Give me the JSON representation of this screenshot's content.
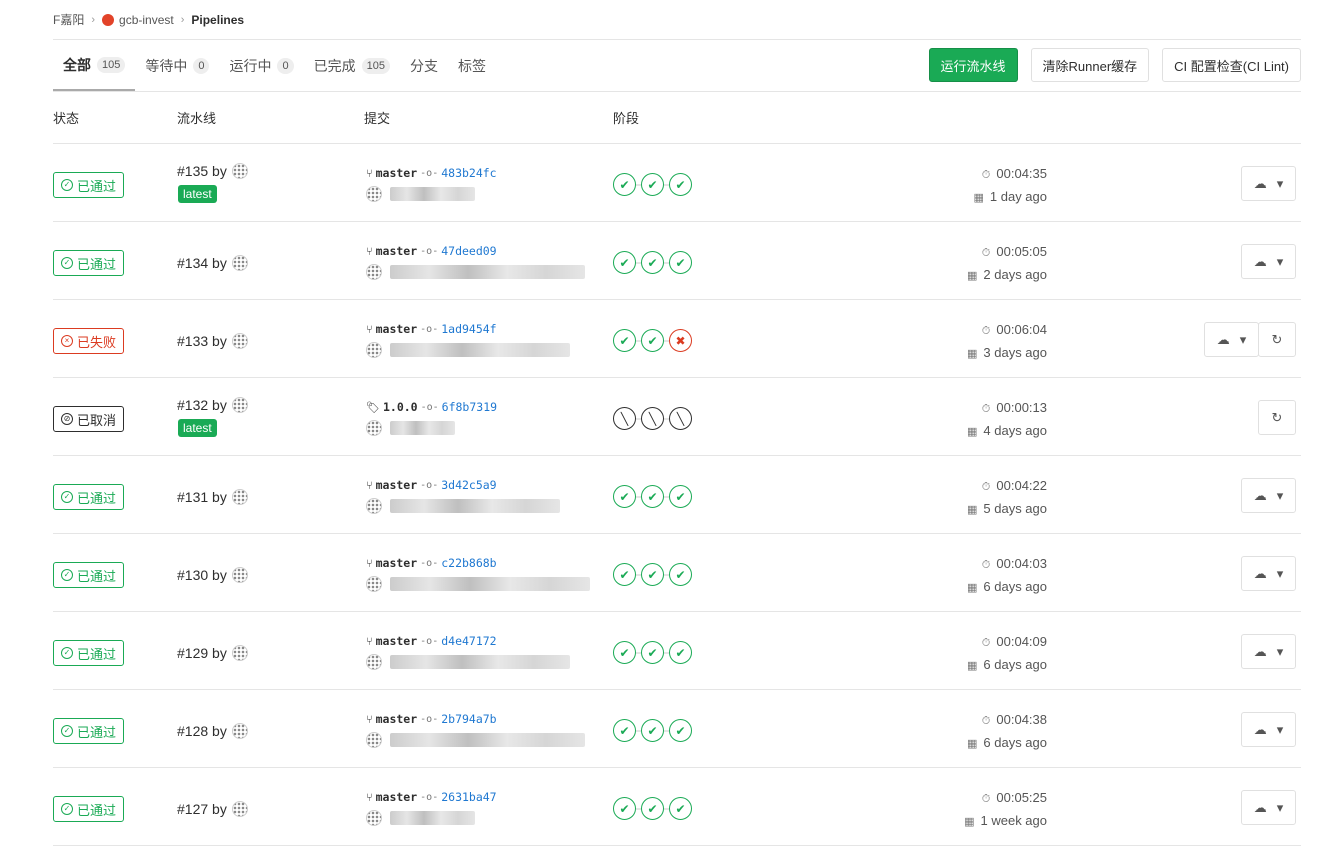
{
  "breadcrumb": [
    "F嘉阳",
    "gcb-invest",
    "Pipelines"
  ],
  "tabs": [
    {
      "label": "全部",
      "count": "105",
      "active": true
    },
    {
      "label": "等待中",
      "count": "0"
    },
    {
      "label": "运行中",
      "count": "0"
    },
    {
      "label": "已完成",
      "count": "105"
    },
    {
      "label": "分支"
    },
    {
      "label": "标签"
    }
  ],
  "buttons": {
    "run": "运行流水线",
    "clear_cache": "清除Runner缓存",
    "lint": "CI 配置检查(CI Lint)"
  },
  "columns": {
    "status": "状态",
    "pipeline": "流水线",
    "commit": "提交",
    "stages": "阶段"
  },
  "colors": {
    "success": "#1aaa55",
    "failed": "#db3b21",
    "link": "#1f78d1"
  },
  "rows": [
    {
      "status": "passed",
      "status_label": "已通过",
      "id": "#135 by",
      "latest": "latest",
      "ref_type": "branch",
      "ref": "master",
      "sha": "483b24fc",
      "stages": [
        "success",
        "success",
        "success"
      ],
      "duration": "00:04:35",
      "finished": "1 day ago",
      "actions": [
        "download"
      ]
    },
    {
      "status": "passed",
      "status_label": "已通过",
      "id": "#134 by",
      "ref_type": "branch",
      "ref": "master",
      "sha": "47deed09",
      "stages": [
        "success",
        "success",
        "success"
      ],
      "duration": "00:05:05",
      "finished": "2 days ago",
      "actions": [
        "download"
      ]
    },
    {
      "status": "failed",
      "status_label": "已失败",
      "id": "#133 by",
      "ref_type": "branch",
      "ref": "master",
      "sha": "1ad9454f",
      "stages": [
        "success",
        "success",
        "failed"
      ],
      "duration": "00:06:04",
      "finished": "3 days ago",
      "actions": [
        "download",
        "retry"
      ]
    },
    {
      "status": "canceled",
      "status_label": "已取消",
      "id": "#132 by",
      "latest": "latest",
      "ref_type": "tag",
      "ref": "1.0.0",
      "sha": "6f8b7319",
      "stages": [
        "canceled",
        "canceled",
        "canceled"
      ],
      "duration": "00:00:13",
      "finished": "4 days ago",
      "actions": [
        "retry"
      ]
    },
    {
      "status": "passed",
      "status_label": "已通过",
      "id": "#131 by",
      "ref_type": "branch",
      "ref": "master",
      "sha": "3d42c5a9",
      "stages": [
        "success",
        "success",
        "success"
      ],
      "duration": "00:04:22",
      "finished": "5 days ago",
      "actions": [
        "download"
      ]
    },
    {
      "status": "passed",
      "status_label": "已通过",
      "id": "#130 by",
      "ref_type": "branch",
      "ref": "master",
      "sha": "c22b868b",
      "stages": [
        "success",
        "success",
        "success"
      ],
      "duration": "00:04:03",
      "finished": "6 days ago",
      "actions": [
        "download"
      ]
    },
    {
      "status": "passed",
      "status_label": "已通过",
      "id": "#129 by",
      "ref_type": "branch",
      "ref": "master",
      "sha": "d4e47172",
      "stages": [
        "success",
        "success",
        "success"
      ],
      "duration": "00:04:09",
      "finished": "6 days ago",
      "actions": [
        "download"
      ]
    },
    {
      "status": "passed",
      "status_label": "已通过",
      "id": "#128 by",
      "ref_type": "branch",
      "ref": "master",
      "sha": "2b794a7b",
      "stages": [
        "success",
        "success",
        "success"
      ],
      "duration": "00:04:38",
      "finished": "6 days ago",
      "actions": [
        "download"
      ]
    },
    {
      "status": "passed",
      "status_label": "已通过",
      "id": "#127 by",
      "ref_type": "branch",
      "ref": "master",
      "sha": "2631ba47",
      "stages": [
        "success",
        "success",
        "success"
      ],
      "duration": "00:05:25",
      "finished": "1 week ago",
      "actions": [
        "download"
      ]
    }
  ]
}
